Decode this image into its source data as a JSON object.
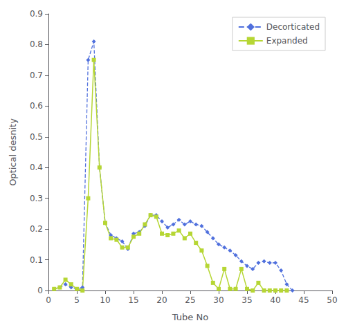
{
  "chart_data": {
    "type": "line",
    "title": "",
    "xlabel": "Tube No",
    "ylabel": "Optical desnity",
    "xlim": [
      0,
      50
    ],
    "ylim": [
      0,
      0.9
    ],
    "xticks": [
      0,
      5,
      10,
      15,
      20,
      25,
      30,
      35,
      40,
      45,
      50
    ],
    "yticks": [
      0,
      0.1,
      0.2,
      0.3,
      0.4,
      0.5,
      0.6,
      0.7,
      0.8,
      0.9
    ],
    "grid": false,
    "legend": "upper right",
    "series": [
      {
        "name": "Decorticated",
        "line_style": "dashed",
        "marker": "diamond",
        "x": [
          1,
          2,
          3,
          4,
          5,
          6,
          7,
          8,
          9,
          10,
          11,
          12,
          13,
          14,
          15,
          16,
          17,
          18,
          19,
          20,
          21,
          22,
          23,
          24,
          25,
          26,
          27,
          28,
          29,
          30,
          31,
          32,
          33,
          34,
          35,
          36,
          37,
          38,
          39,
          40,
          41,
          42,
          43
        ],
        "values": [
          0.005,
          0.01,
          0.02,
          0.01,
          0.005,
          0.01,
          0.75,
          0.81,
          0.4,
          0.22,
          0.18,
          0.17,
          0.16,
          0.135,
          0.185,
          0.19,
          0.21,
          0.245,
          0.245,
          0.225,
          0.205,
          0.215,
          0.23,
          0.215,
          0.225,
          0.215,
          0.21,
          0.19,
          0.17,
          0.15,
          0.14,
          0.13,
          0.115,
          0.095,
          0.08,
          0.07,
          0.09,
          0.095,
          0.09,
          0.09,
          0.065,
          0.02,
          0.0
        ]
      },
      {
        "name": "Expanded",
        "line_style": "solid",
        "marker": "square",
        "x": [
          1,
          2,
          3,
          4,
          5,
          6,
          7,
          8,
          9,
          10,
          11,
          12,
          13,
          14,
          15,
          16,
          17,
          18,
          19,
          20,
          21,
          22,
          23,
          24,
          25,
          26,
          27,
          28,
          29,
          30,
          31,
          32,
          33,
          34,
          35,
          36,
          37,
          38,
          39,
          40,
          41,
          42
        ],
        "values": [
          0.005,
          0.01,
          0.035,
          0.02,
          0.005,
          0.0,
          0.3,
          0.75,
          0.4,
          0.22,
          0.17,
          0.165,
          0.14,
          0.14,
          0.175,
          0.185,
          0.215,
          0.245,
          0.24,
          0.185,
          0.18,
          0.185,
          0.195,
          0.17,
          0.185,
          0.155,
          0.13,
          0.08,
          0.025,
          0.005,
          0.07,
          0.005,
          0.005,
          0.07,
          0.005,
          0.0,
          0.025,
          0.0,
          0.0,
          0.0,
          0.0,
          0.0
        ]
      }
    ]
  }
}
